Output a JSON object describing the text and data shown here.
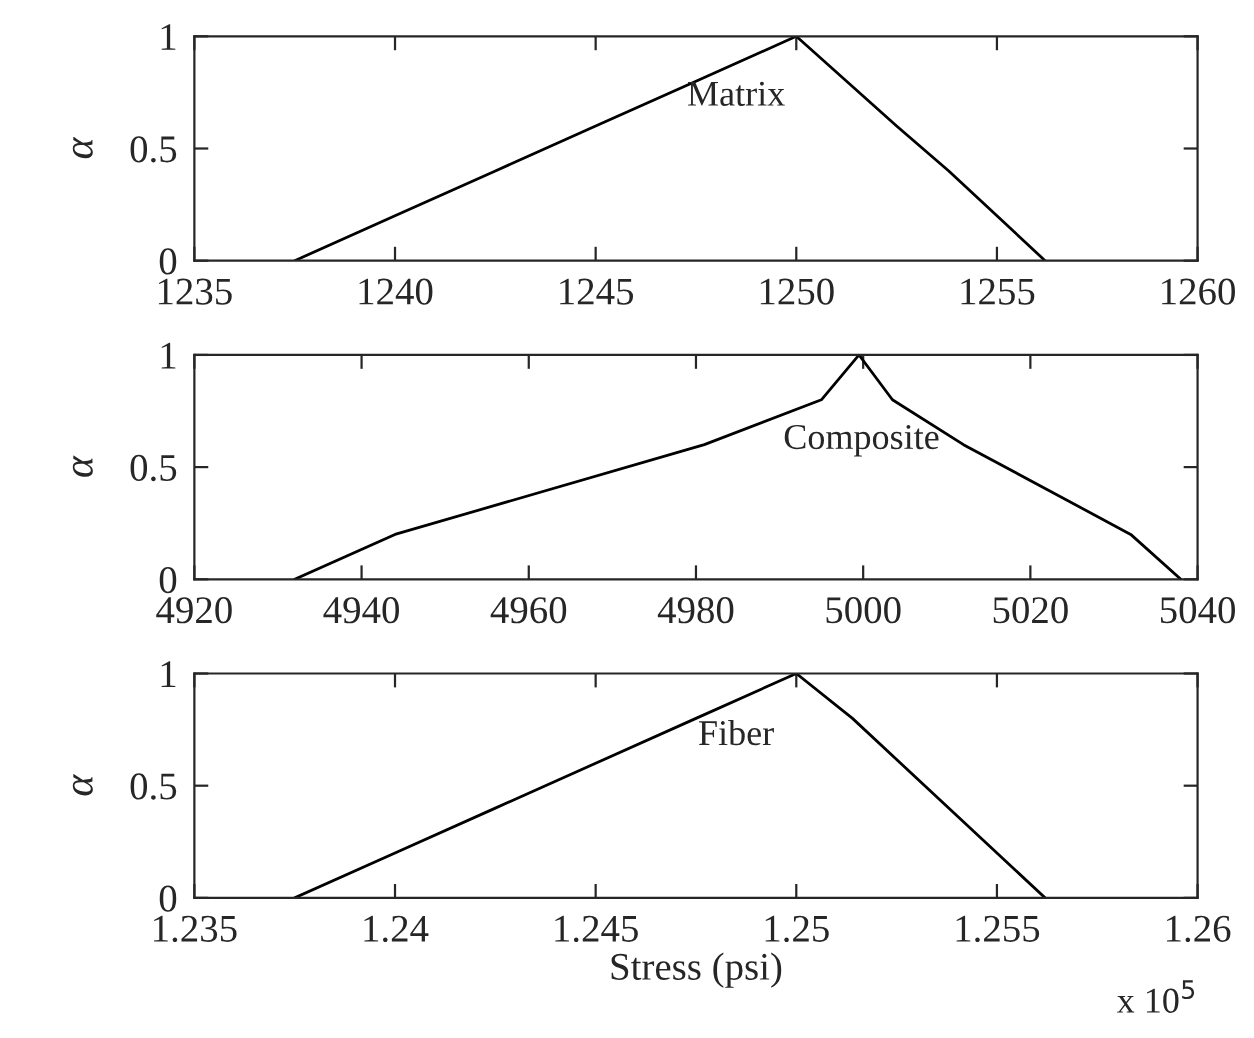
{
  "chart_data": [
    {
      "type": "line",
      "ylabel": "α",
      "x": [
        1237.5,
        1240,
        1242.5,
        1245,
        1247.5,
        1250,
        1252.5,
        1253.8,
        1255,
        1256.2
      ],
      "series": [
        {
          "color": "#000000",
          "values": [
            0,
            0.2,
            0.4,
            0.6,
            0.8,
            1,
            0.6,
            0.4,
            0.2,
            0
          ]
        }
      ],
      "xlim": [
        1235,
        1260
      ],
      "xticks": [
        1235,
        1240,
        1245,
        1250,
        1255,
        1260
      ],
      "ylim": [
        0,
        1
      ],
      "yticks": [
        0,
        0.5,
        1
      ],
      "annotations": [
        "Matrix"
      ],
      "grid": false,
      "legend": false
    },
    {
      "type": "line",
      "ylabel": "α",
      "x": [
        4932,
        4944,
        4981,
        4995,
        4999.5,
        5003.5,
        5012,
        5032,
        5038
      ],
      "series": [
        {
          "color": "#000000",
          "values": [
            0,
            0.2,
            0.6,
            0.8,
            1,
            0.8,
            0.6,
            0.2,
            0
          ]
        }
      ],
      "xlim": [
        4920,
        5040
      ],
      "xticks": [
        4920,
        4940,
        4960,
        4980,
        5000,
        5020,
        5040
      ],
      "ylim": [
        0,
        1
      ],
      "yticks": [
        0,
        0.5,
        1
      ],
      "annotations": [
        "Composite"
      ],
      "grid": false,
      "legend": false
    },
    {
      "type": "line",
      "ylabel": "α",
      "xlabel": "Stress (psi)",
      "x": [
        1.2375,
        1.24,
        1.2425,
        1.245,
        1.2475,
        1.25,
        1.2514,
        1.2562
      ],
      "series": [
        {
          "color": "#000000",
          "values": [
            0,
            0.2,
            0.4,
            0.6,
            0.8,
            1,
            0.8,
            0
          ]
        }
      ],
      "xlim": [
        1.235,
        1.26
      ],
      "xticks": [
        1.235,
        1.24,
        1.245,
        1.25,
        1.255,
        1.26
      ],
      "ylim": [
        0,
        1
      ],
      "yticks": [
        0,
        0.5,
        1
      ],
      "annotations": [
        "Fiber",
        "x 10$^{5}$"
      ],
      "grid": false,
      "legend": false
    }
  ]
}
